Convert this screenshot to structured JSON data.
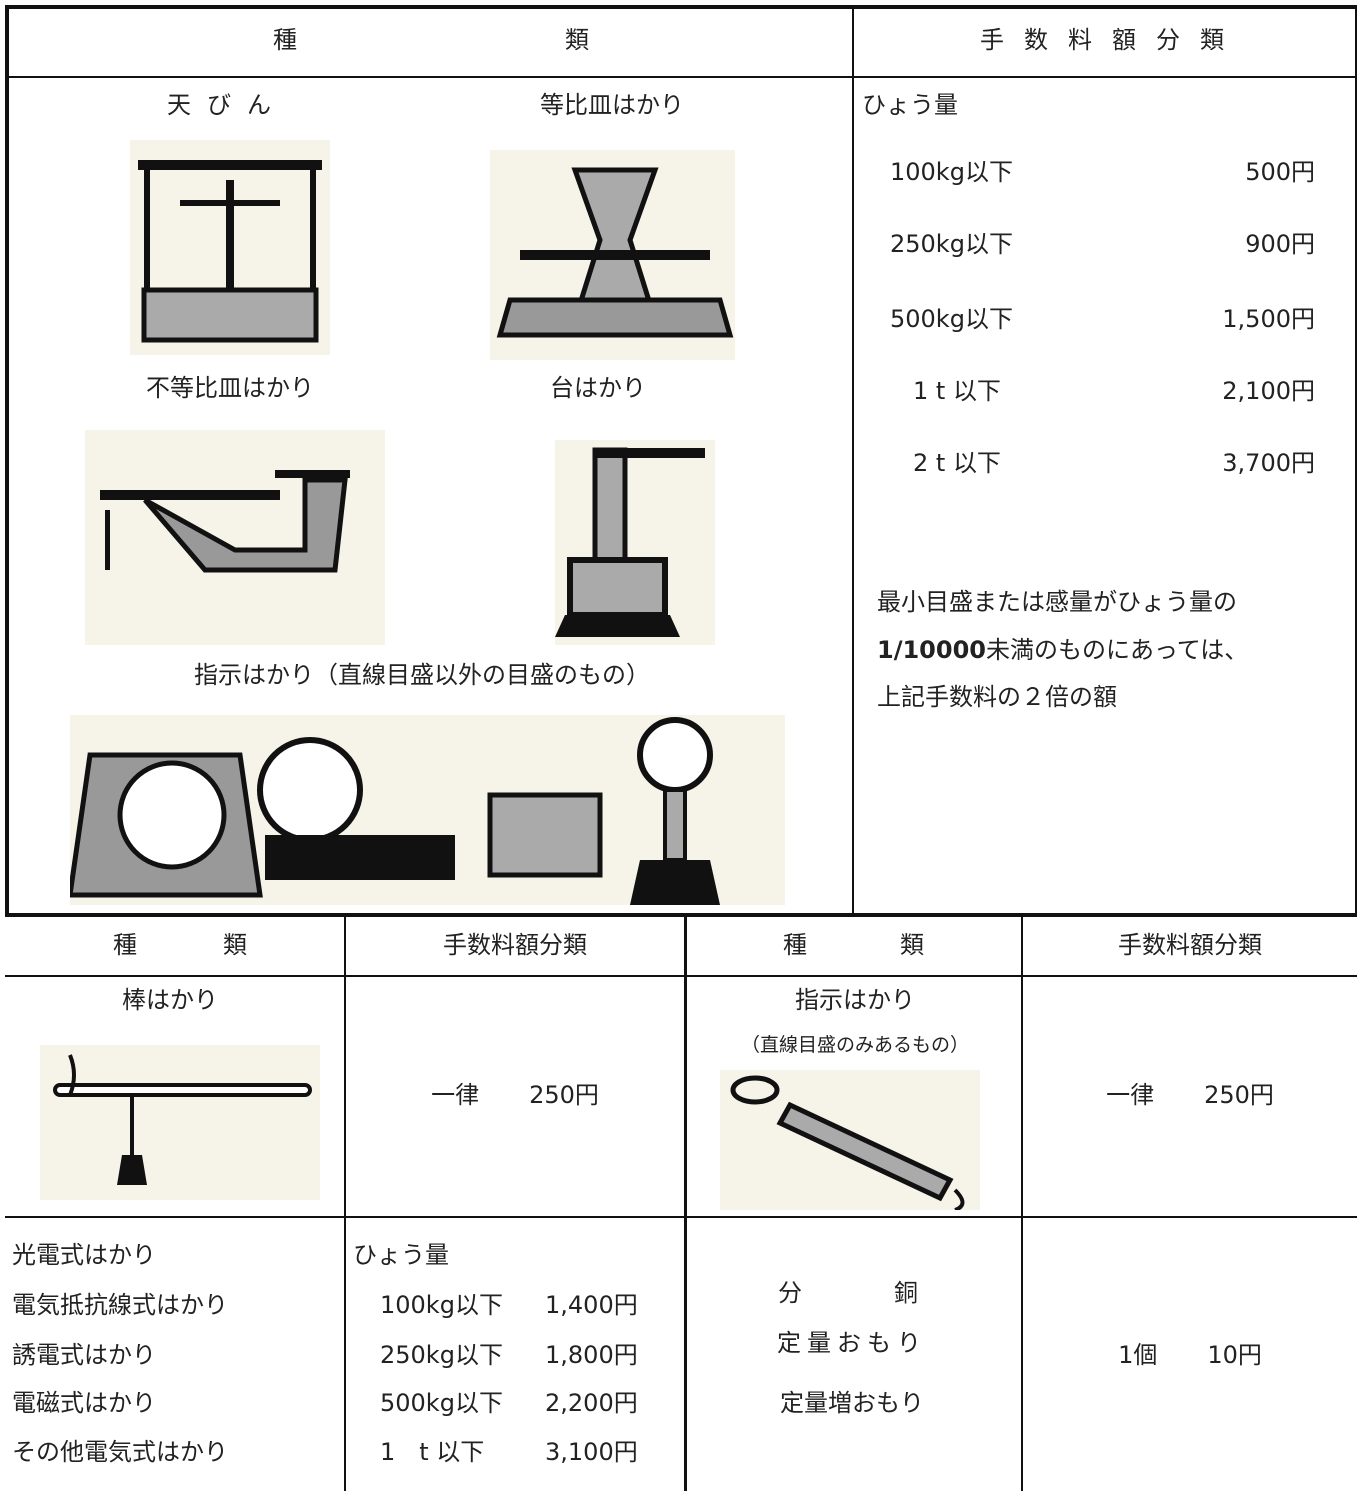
{
  "top": {
    "header": {
      "kind": [
        "種",
        "類"
      ],
      "fee": "手数料額分類"
    },
    "kinds": {
      "tenbin": "天びん",
      "tohi": "等比皿はかり",
      "futohi": "不等比皿はかり",
      "dai": "台はかり",
      "shiji": "指示はかり（直線目盛以外の目盛のもの）"
    },
    "fees": {
      "capacity": "ひょう量",
      "rows": [
        [
          "100kg以下",
          "500円"
        ],
        [
          "250kg以下",
          "900円"
        ],
        [
          "500kg以下",
          "1,500円"
        ],
        [
          "1 t 以下",
          "2,100円"
        ],
        [
          "2 t 以下",
          "3,700円"
        ]
      ],
      "note": {
        "line1": "最小目盛または感量がひょう量の",
        "line2_bold": "1/10000",
        "line2": "未満のものにあっては、",
        "line3": "上記手数料の２倍の額"
      }
    }
  },
  "bottom": {
    "header": [
      [
        "種",
        "類"
      ],
      "手数料額分類",
      [
        "種",
        "類"
      ],
      "手数料額分類"
    ],
    "row1": {
      "kind_left": "棒はかり",
      "fee_left": [
        "一律",
        "250円"
      ],
      "kind_right": "指示はかり",
      "kind_right_note": "（直線目盛のみあるもの）",
      "fee_right": [
        "一律",
        "250円"
      ]
    },
    "row2": {
      "kinds_left": [
        "光電式はかり",
        "電気抵抗線式はかり",
        "誘電式はかり",
        "電磁式はかり",
        "その他電気式はかり"
      ],
      "fee_left": {
        "capacity": "ひょう量",
        "rows": [
          [
            "100kg以下",
            "1,400円"
          ],
          [
            "250kg以下",
            "1,800円"
          ],
          [
            "500kg以下",
            "2,200円"
          ],
          [
            "1　t 以下",
            "3,100円"
          ]
        ]
      },
      "kinds_right": [
        [
          "分",
          "銅"
        ],
        "定量おもり",
        "定量増おもり"
      ],
      "fee_right": [
        "1個",
        "10円"
      ]
    }
  }
}
